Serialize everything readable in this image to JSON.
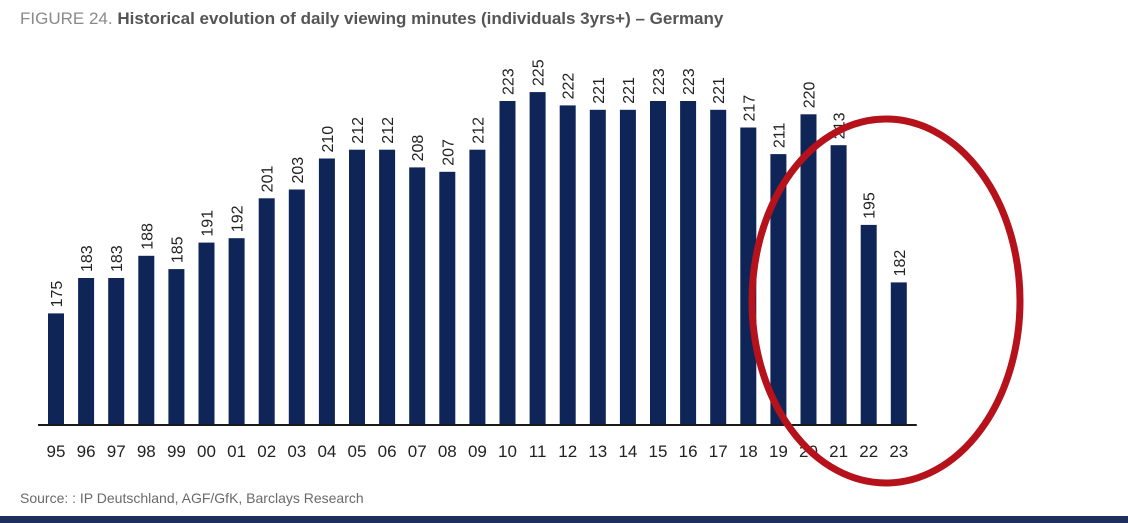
{
  "figure": {
    "label": "FIGURE 24.",
    "title": "Historical evolution of daily viewing minutes (individuals 3yrs+) – Germany"
  },
  "source": "Source: : IP Deutschland, AGF/GfK, Barclays Research",
  "colors": {
    "bar": "#0f2557",
    "axis": "#1a1a1a",
    "highlight_ellipse": "#b5121b"
  },
  "chart_data": {
    "type": "bar",
    "title": "Historical evolution of daily viewing minutes (individuals 3yrs+) – Germany",
    "xlabel": "",
    "ylabel": "",
    "categories": [
      "95",
      "96",
      "97",
      "98",
      "99",
      "00",
      "01",
      "02",
      "03",
      "04",
      "05",
      "06",
      "07",
      "08",
      "09",
      "10",
      "11",
      "12",
      "13",
      "14",
      "15",
      "16",
      "17",
      "18",
      "19",
      "20",
      "21",
      "22",
      "23"
    ],
    "values": [
      175,
      183,
      183,
      188,
      185,
      191,
      192,
      201,
      203,
      210,
      212,
      212,
      208,
      207,
      212,
      223,
      225,
      222,
      221,
      221,
      223,
      223,
      221,
      217,
      211,
      220,
      213,
      195,
      182
    ],
    "ylim": [
      150,
      230
    ],
    "grid": false,
    "legend": "none",
    "annotations": [
      "red ellipse highlighting years 19–23"
    ]
  }
}
